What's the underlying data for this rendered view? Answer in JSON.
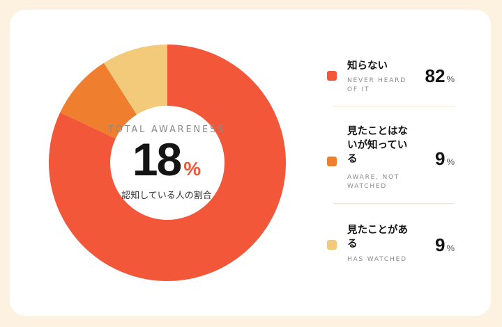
{
  "chart_data": {
    "type": "pie",
    "categories": [
      "知らない",
      "見たことはないが知っている",
      "見たことがある"
    ],
    "values": [
      82,
      9,
      9
    ],
    "colors": [
      "#f2573a",
      "#ef7f2f",
      "#f3c97a"
    ],
    "title": "",
    "center": {
      "label": "TOTAL AWARENESS",
      "value": "18",
      "unit": "%",
      "sublabel": "認知している人の割合"
    }
  },
  "legend": [
    {
      "label": "知らない",
      "sublabel": "NEVER HEARD OF IT",
      "value": "82",
      "unit": "%",
      "color": "#f2573a"
    },
    {
      "label": "見たことはないが知っている",
      "sublabel": "AWARE, NOT WATCHED",
      "value": "9",
      "unit": "%",
      "color": "#ef7f2f"
    },
    {
      "label": "見たことがある",
      "sublabel": "HAS WATCHED",
      "value": "9",
      "unit": "%",
      "color": "#f3c97a"
    }
  ]
}
